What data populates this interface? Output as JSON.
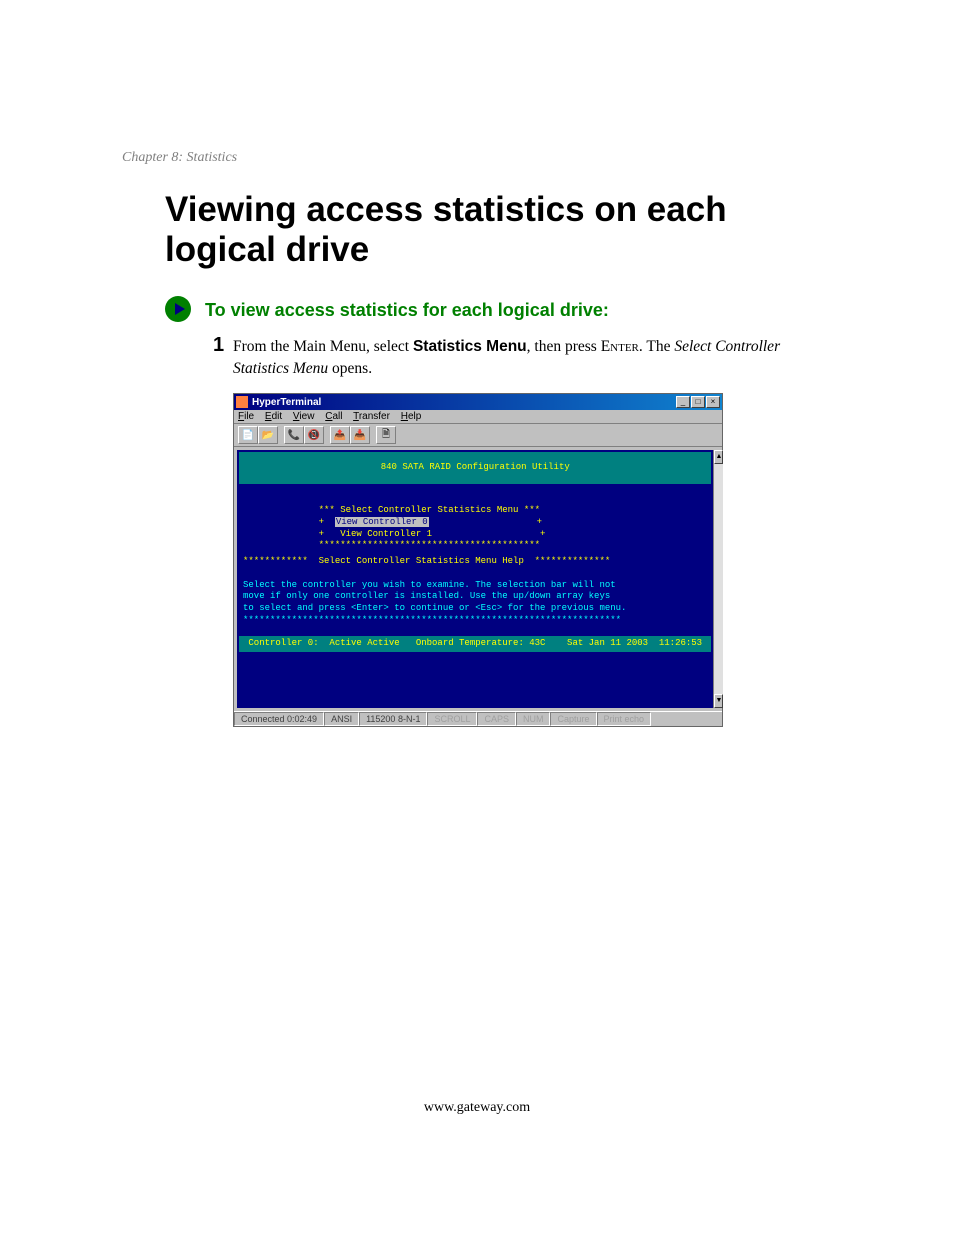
{
  "chapter": "Chapter 8: Statistics",
  "title": "Viewing access statistics on each logical drive",
  "section": "To view access statistics for each logical drive:",
  "step": {
    "num": "1",
    "pre": "From the Main Menu, select ",
    "bold1": "Statistics Menu",
    "mid": ", then press ",
    "sc": "Enter",
    "post1": ". The ",
    "italic": "Select Controller Statistics Menu",
    "post2": " opens."
  },
  "ht": {
    "title": "HyperTerminal",
    "menus": {
      "file": "File",
      "edit": "Edit",
      "view": "View",
      "call": "Call",
      "transfer": "Transfer",
      "help": "Help"
    },
    "winbtns": {
      "min": "_",
      "max": "□",
      "close": "×"
    },
    "term": {
      "header": "840 SATA RAID Configuration Utility",
      "menu_title": "*** Select Controller Statistics Menu ***",
      "opt0_prefix": "+  ",
      "opt0": "View Controller 0",
      "opt0_suffix": "                    +",
      "opt1_line": "+   View Controller 1                    +",
      "border": "*****************************************",
      "help_border_l": "************  ",
      "help_title": "Select Controller Statistics Menu Help",
      "help_border_r": "  **************",
      "help_text": "Select the controller you wish to examine. The selection bar will not\nmove if only one controller is installed. Use the up/down array keys\nto select and press <Enter> to continue or <Esc> for the previous menu.\n**********************************************************************",
      "status": " Controller 0:  Active Active   Onboard Temperature: 43C    Sat Jan 11 2003  11:26:53 "
    },
    "status": {
      "connected": "Connected 0:02:49",
      "emulation": "ANSI",
      "baud": "115200 8-N-1",
      "scroll": "SCROLL",
      "caps": "CAPS",
      "num": "NUM",
      "capture": "Capture",
      "echo": "Print echo"
    }
  },
  "footer": "www.gateway.com",
  "colors": {
    "green": "#008000",
    "navy": "#000080",
    "teal": "#008080",
    "yellow": "#ffff00",
    "cyan": "#00ffff",
    "win_gray": "#c0c0c0"
  }
}
